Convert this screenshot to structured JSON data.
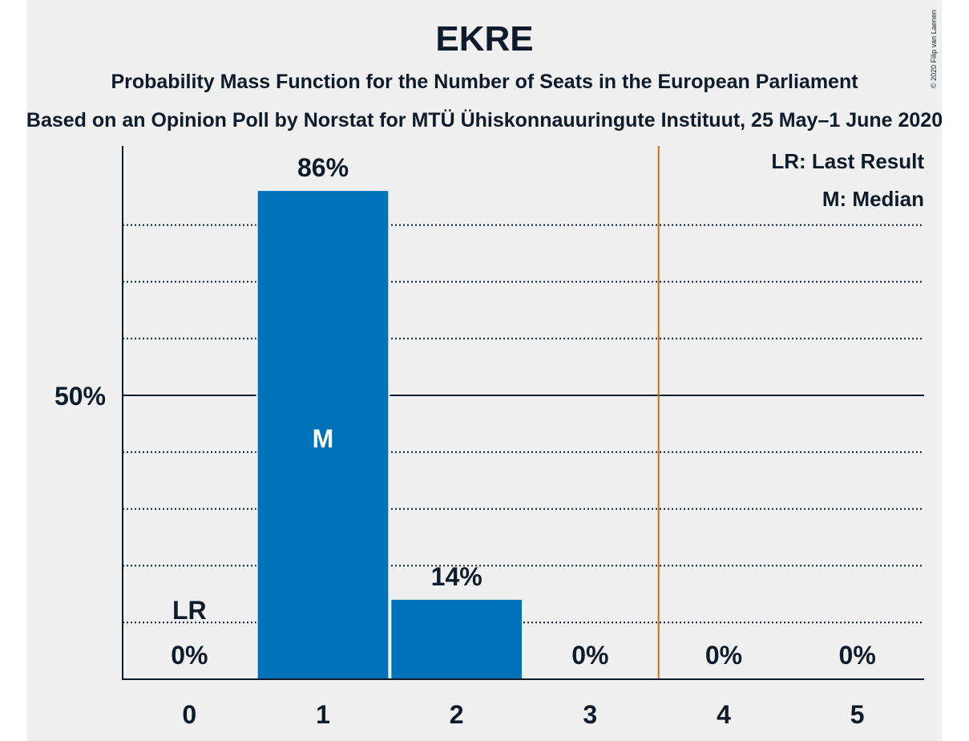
{
  "chart_data": {
    "type": "bar",
    "title": "EKRE",
    "subtitle": "Probability Mass Function for the Number of Seats in the European Parliament",
    "subtitle2": "Based on an Opinion Poll by Norstat for MTÜ Ühiskonnauuringute Instituut, 25 May–1 June 2020",
    "copyright": "© 2020 Filip van Laenen",
    "categories": [
      "0",
      "1",
      "2",
      "3",
      "4",
      "5"
    ],
    "values": [
      0,
      86,
      14,
      0,
      0,
      0
    ],
    "value_labels": [
      "0%",
      "86%",
      "14%",
      "0%",
      "0%",
      "0%"
    ],
    "ylim": [
      0,
      93
    ],
    "ytick_label": "50%",
    "ytick_value": 50,
    "gridlines": [
      10,
      20,
      30,
      40,
      60,
      70,
      80
    ],
    "median_index": 1,
    "median_marker": "M",
    "last_result_index": 0,
    "last_result_marker": "LR",
    "threshold_between": [
      3,
      4
    ],
    "legend": [
      "LR: Last Result",
      "M: Median"
    ],
    "legend_position": "top-right",
    "colors": {
      "bar": "#0072b9",
      "threshold": "#d2691e",
      "text": "#0d1b2a",
      "background": "#f0f0f0"
    }
  }
}
